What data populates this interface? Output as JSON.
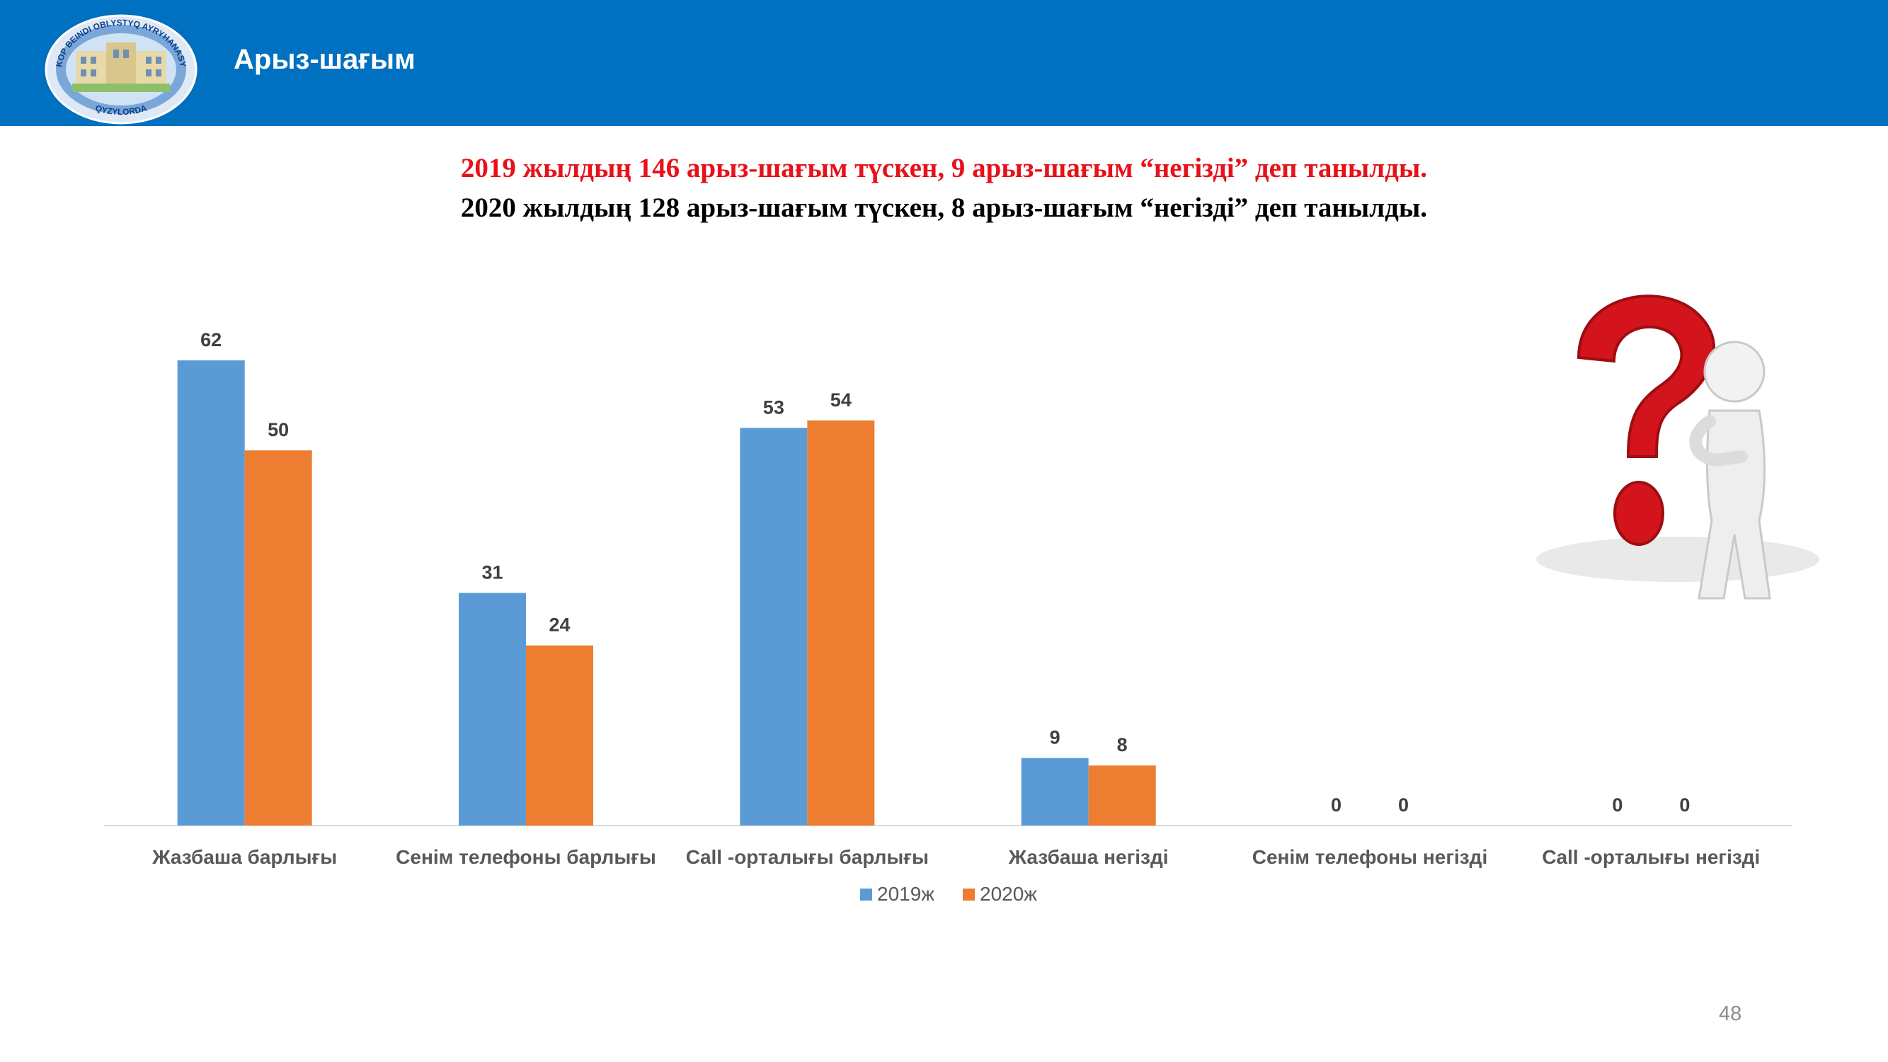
{
  "header": {
    "title": "Арыз-шағым"
  },
  "headline": {
    "line1": "2019 жылдың 146 арыз-шағым түскен, 9 арыз-шағым “негізді” деп танылды.",
    "line2": "2020 жылдың 128 арыз-шағым түскен,  8 арыз-шағым “негізді” деп танылды."
  },
  "logo": {
    "top_text": "KOP BEINDI OBLYSTYQ AYRYHANASY",
    "bottom_text": "QYZYLORDA"
  },
  "page_number": "48",
  "chart_data": {
    "type": "bar",
    "categories": [
      "Жазбаша барлығы",
      "Сенім телефоны барлығы",
      "Call -орталығы барлығы",
      "Жазбаша негізді",
      "Сенім телефоны негізді",
      "Call -орталығы негізді"
    ],
    "series": [
      {
        "name": "2019ж",
        "color": "#5b9bd5",
        "values": [
          62,
          31,
          53,
          9,
          0,
          0
        ]
      },
      {
        "name": "2020ж",
        "color": "#ed7d31",
        "values": [
          50,
          24,
          54,
          8,
          0,
          0
        ]
      }
    ],
    "ylim": [
      0,
      62
    ],
    "grid": false,
    "legend": "bottom",
    "data_labels": true
  }
}
